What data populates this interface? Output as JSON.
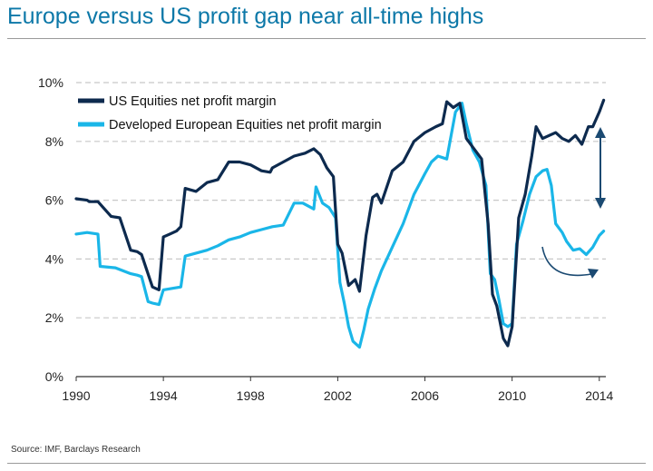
{
  "title": "Europe versus US profit gap near all-time highs",
  "source": "Source: IMF, Barclays Research",
  "chart_data": {
    "type": "line",
    "title": "Europe versus US profit gap near all-time highs",
    "xlabel": "",
    "ylabel": "",
    "xlim": [
      1990,
      2014.3
    ],
    "ylim": [
      0,
      10
    ],
    "x_ticks": [
      "1990",
      "1994",
      "1998",
      "2002",
      "2006",
      "2010",
      "2014"
    ],
    "y_ticks": [
      "0%",
      "2%",
      "4%",
      "6%",
      "8%",
      "10%"
    ],
    "grid": "horizontal dashed",
    "legend": "top-left",
    "colors": {
      "us": "#0d2a4e",
      "europe": "#1ab6e8",
      "arrow": "#1b4a72",
      "title": "#0c78a8"
    },
    "series": [
      {
        "name": "US Equities net profit margin",
        "x": [
          1990,
          1990.5,
          1990.6,
          1991,
          1991.6,
          1992,
          1992.5,
          1992.8,
          1993.0,
          1993.5,
          1993.8,
          1994.0,
          1994.3,
          1994.6,
          1994.8,
          1995.0,
          1995.5,
          1996.0,
          1996.5,
          1997.0,
          1997.5,
          1998.0,
          1998.5,
          1998.9,
          1999.0,
          1999.5,
          2000.0,
          2000.5,
          2000.9,
          2001.2,
          2001.5,
          2001.8,
          2002.0,
          2002.2,
          2002.5,
          2002.8,
          2003.0,
          2003.3,
          2003.6,
          2003.8,
          2004.0,
          2004.5,
          2005.0,
          2005.5,
          2006.0,
          2006.5,
          2006.8,
          2007.0,
          2007.3,
          2007.6,
          2007.9,
          2008.2,
          2008.6,
          2008.9,
          2009.1,
          2009.3,
          2009.6,
          2009.8,
          2010.0,
          2010.3,
          2010.6,
          2010.9,
          2011.1,
          2011.4,
          2011.7,
          2012.0,
          2012.3,
          2012.6,
          2012.9,
          2013.2,
          2013.5,
          2013.7,
          2014.0,
          2014.2
        ],
        "values": [
          6.05,
          6.0,
          5.95,
          5.95,
          5.45,
          5.4,
          4.3,
          4.25,
          4.15,
          3.05,
          2.95,
          4.75,
          4.85,
          4.95,
          5.1,
          6.4,
          6.3,
          6.6,
          6.7,
          7.3,
          7.3,
          7.2,
          7.0,
          6.95,
          7.1,
          7.3,
          7.5,
          7.6,
          7.75,
          7.55,
          7.1,
          6.8,
          4.5,
          4.2,
          3.1,
          3.3,
          2.9,
          4.8,
          6.1,
          6.2,
          5.9,
          7.0,
          7.3,
          8.0,
          8.3,
          8.5,
          8.6,
          9.35,
          9.15,
          9.3,
          8.1,
          7.8,
          7.4,
          5.2,
          2.8,
          2.4,
          1.3,
          1.05,
          1.7,
          5.4,
          6.2,
          7.5,
          8.5,
          8.1,
          8.2,
          8.3,
          8.1,
          8.0,
          8.2,
          7.9,
          8.5,
          8.5,
          9.0,
          9.4
        ]
      },
      {
        "name": "Developed European Equities net profit margin",
        "x": [
          1990,
          1990.5,
          1991.0,
          1991.1,
          1991.8,
          1992.5,
          1992.8,
          1993.0,
          1993.3,
          1993.5,
          1993.8,
          1994.0,
          1994.4,
          1994.8,
          1995.0,
          1995.5,
          1996.0,
          1996.5,
          1997.0,
          1997.5,
          1998.0,
          1998.5,
          1999.0,
          1999.5,
          2000.0,
          2000.4,
          2000.9,
          2001.0,
          2001.3,
          2001.6,
          2001.9,
          2002.1,
          2002.3,
          2002.5,
          2002.7,
          2003.0,
          2003.2,
          2003.4,
          2003.7,
          2004.0,
          2004.5,
          2005.0,
          2005.5,
          2006.0,
          2006.3,
          2006.6,
          2007.0,
          2007.4,
          2007.7,
          2007.9,
          2008.2,
          2008.5,
          2008.8,
          2009.0,
          2009.2,
          2009.4,
          2009.6,
          2009.8,
          2010.0,
          2010.2,
          2010.5,
          2010.8,
          2011.1,
          2011.4,
          2011.6,
          2011.8,
          2012.0,
          2012.3,
          2012.5,
          2012.8,
          2013.1,
          2013.4,
          2013.7,
          2014.0,
          2014.2
        ],
        "values": [
          4.85,
          4.9,
          4.85,
          3.75,
          3.7,
          3.5,
          3.45,
          3.4,
          2.55,
          2.5,
          2.45,
          2.95,
          3.0,
          3.05,
          4.1,
          4.2,
          4.3,
          4.45,
          4.65,
          4.75,
          4.9,
          5.0,
          5.1,
          5.15,
          5.9,
          5.9,
          5.7,
          6.45,
          5.9,
          5.75,
          5.4,
          3.2,
          2.5,
          1.7,
          1.2,
          1.0,
          1.6,
          2.3,
          3.0,
          3.6,
          4.4,
          5.2,
          6.2,
          6.9,
          7.3,
          7.5,
          7.4,
          9.0,
          9.3,
          8.6,
          7.7,
          7.3,
          6.5,
          3.5,
          3.3,
          2.6,
          1.8,
          1.7,
          1.8,
          4.5,
          5.3,
          6.2,
          6.8,
          7.0,
          7.05,
          6.5,
          5.2,
          4.9,
          4.6,
          4.3,
          4.35,
          4.15,
          4.4,
          4.8,
          4.95
        ]
      }
    ]
  }
}
